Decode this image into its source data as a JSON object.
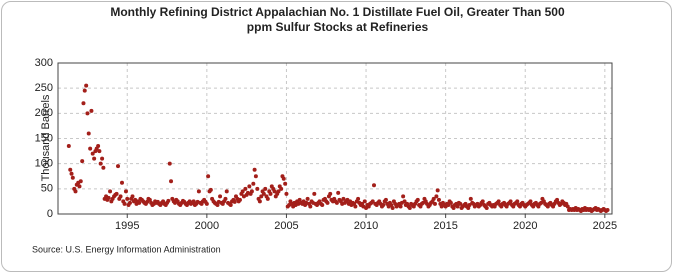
{
  "chart_data": {
    "type": "scatter",
    "title": "Monthly Refining District Appalachian No. 1 Distillate Fuel Oil, Greater Than 500 ppm Sulfur Stocks at Refineries",
    "y_label": "Thousand Barrels",
    "source": "Source: U.S. Energy Information Administration",
    "color": "#a31f1a",
    "grid": true,
    "xlim": [
      1990.65,
      2025.45
    ],
    "xticks": [
      1995,
      2000,
      2005,
      2010,
      2015,
      2020,
      2025
    ],
    "ylim": [
      0,
      300
    ],
    "yticks": [
      0,
      50,
      100,
      150,
      200,
      250,
      300
    ],
    "x": [
      1991.33,
      1991.42,
      1991.5,
      1991.58,
      1991.67,
      1991.75,
      1991.83,
      1991.92,
      1992,
      1992.08,
      1992.17,
      1992.25,
      1992.33,
      1992.42,
      1992.5,
      1992.58,
      1992.67,
      1992.75,
      1992.83,
      1992.92,
      1993,
      1993.08,
      1993.17,
      1993.25,
      1993.33,
      1993.42,
      1993.5,
      1993.58,
      1993.67,
      1993.75,
      1993.83,
      1993.92,
      1994,
      1994.08,
      1994.17,
      1994.25,
      1994.33,
      1994.42,
      1994.5,
      1994.58,
      1994.67,
      1994.75,
      1994.83,
      1994.92,
      1995,
      1995.08,
      1995.17,
      1995.25,
      1995.33,
      1995.42,
      1995.5,
      1995.58,
      1995.67,
      1995.75,
      1995.83,
      1995.92,
      1996,
      1996.08,
      1996.17,
      1996.25,
      1996.33,
      1996.42,
      1996.5,
      1996.58,
      1996.67,
      1996.75,
      1996.83,
      1996.92,
      1997,
      1997.08,
      1997.17,
      1997.25,
      1997.33,
      1997.42,
      1997.5,
      1997.58,
      1997.67,
      1997.75,
      1997.83,
      1997.92,
      1998,
      1998.08,
      1998.17,
      1998.25,
      1998.33,
      1998.42,
      1998.5,
      1998.58,
      1998.67,
      1998.75,
      1998.83,
      1998.92,
      1999,
      1999.08,
      1999.17,
      1999.25,
      1999.33,
      1999.42,
      1999.5,
      1999.58,
      1999.67,
      1999.75,
      1999.83,
      1999.92,
      2000,
      2000.08,
      2000.17,
      2000.25,
      2000.33,
      2000.42,
      2000.5,
      2000.58,
      2000.67,
      2000.75,
      2000.83,
      2000.92,
      2001,
      2001.08,
      2001.17,
      2001.25,
      2001.33,
      2001.42,
      2001.5,
      2001.58,
      2001.67,
      2001.75,
      2001.83,
      2001.92,
      2002,
      2002.08,
      2002.17,
      2002.25,
      2002.33,
      2002.42,
      2002.5,
      2002.58,
      2002.67,
      2002.75,
      2002.83,
      2002.92,
      2003,
      2003.08,
      2003.17,
      2003.25,
      2003.33,
      2003.42,
      2003.5,
      2003.58,
      2003.67,
      2003.75,
      2003.83,
      2003.92,
      2004,
      2004.08,
      2004.17,
      2004.25,
      2004.33,
      2004.42,
      2004.5,
      2004.58,
      2004.67,
      2004.75,
      2004.83,
      2004.92,
      2005,
      2005.08,
      2005.17,
      2005.25,
      2005.33,
      2005.42,
      2005.5,
      2005.58,
      2005.67,
      2005.75,
      2005.83,
      2005.92,
      2006,
      2006.08,
      2006.17,
      2006.25,
      2006.33,
      2006.42,
      2006.5,
      2006.58,
      2006.67,
      2006.75,
      2006.83,
      2006.92,
      2007,
      2007.08,
      2007.17,
      2007.25,
      2007.33,
      2007.42,
      2007.5,
      2007.58,
      2007.67,
      2007.75,
      2007.83,
      2007.92,
      2008,
      2008.08,
      2008.17,
      2008.25,
      2008.33,
      2008.42,
      2008.5,
      2008.58,
      2008.67,
      2008.75,
      2008.83,
      2008.92,
      2009,
      2009.08,
      2009.17,
      2009.25,
      2009.33,
      2009.42,
      2009.5,
      2009.58,
      2009.67,
      2009.75,
      2009.83,
      2009.92,
      2010,
      2010.08,
      2010.17,
      2010.25,
      2010.33,
      2010.42,
      2010.5,
      2010.58,
      2010.67,
      2010.75,
      2010.83,
      2010.92,
      2011,
      2011.08,
      2011.17,
      2011.25,
      2011.33,
      2011.42,
      2011.5,
      2011.58,
      2011.67,
      2011.75,
      2011.83,
      2011.92,
      2012,
      2012.08,
      2012.17,
      2012.25,
      2012.33,
      2012.42,
      2012.5,
      2012.58,
      2012.67,
      2012.75,
      2012.83,
      2012.92,
      2013,
      2013.08,
      2013.17,
      2013.25,
      2013.33,
      2013.42,
      2013.5,
      2013.58,
      2013.67,
      2013.75,
      2013.83,
      2013.92,
      2014,
      2014.08,
      2014.17,
      2014.25,
      2014.33,
      2014.42,
      2014.5,
      2014.58,
      2014.67,
      2014.75,
      2014.83,
      2014.92,
      2015,
      2015.08,
      2015.17,
      2015.25,
      2015.33,
      2015.42,
      2015.5,
      2015.58,
      2015.67,
      2015.75,
      2015.83,
      2015.92,
      2016,
      2016.08,
      2016.17,
      2016.25,
      2016.33,
      2016.42,
      2016.5,
      2016.58,
      2016.67,
      2016.75,
      2016.83,
      2016.92,
      2017,
      2017.08,
      2017.17,
      2017.25,
      2017.33,
      2017.42,
      2017.5,
      2017.58,
      2017.67,
      2017.75,
      2017.83,
      2017.92,
      2018,
      2018.08,
      2018.17,
      2018.25,
      2018.33,
      2018.42,
      2018.5,
      2018.58,
      2018.67,
      2018.75,
      2018.83,
      2018.92,
      2019,
      2019.08,
      2019.17,
      2019.25,
      2019.33,
      2019.42,
      2019.5,
      2019.58,
      2019.67,
      2019.75,
      2019.83,
      2019.92,
      2020,
      2020.08,
      2020.17,
      2020.25,
      2020.33,
      2020.42,
      2020.5,
      2020.58,
      2020.67,
      2020.75,
      2020.83,
      2020.92,
      2021,
      2021.08,
      2021.17,
      2021.25,
      2021.33,
      2021.42,
      2021.5,
      2021.58,
      2021.67,
      2021.75,
      2021.83,
      2021.92,
      2022,
      2022.08,
      2022.17,
      2022.25,
      2022.33,
      2022.42,
      2022.5,
      2022.58,
      2022.67,
      2022.75,
      2022.83,
      2022.92,
      2023,
      2023.08,
      2023.17,
      2023.25,
      2023.33,
      2023.42,
      2023.5,
      2023.58,
      2023.67,
      2023.75,
      2023.83,
      2023.92,
      2024,
      2024.08,
      2024.17,
      2024.25,
      2024.33,
      2024.42,
      2024.5,
      2024.58,
      2024.67,
      2024.75,
      2024.83,
      2024.92,
      2025,
      2025.08,
      2025.17
    ],
    "values": [
      135,
      88,
      80,
      72,
      50,
      45,
      58,
      62,
      55,
      65,
      105,
      220,
      245,
      255,
      200,
      160,
      130,
      205,
      120,
      110,
      125,
      130,
      135,
      125,
      100,
      110,
      92,
      30,
      35,
      28,
      32,
      45,
      25,
      30,
      35,
      38,
      40,
      95,
      30,
      35,
      62,
      25,
      20,
      45,
      30,
      18,
      22,
      30,
      35,
      25,
      28,
      20,
      25,
      22,
      30,
      28,
      25,
      22,
      20,
      24,
      30,
      28,
      22,
      18,
      20,
      25,
      22,
      24,
      20,
      18,
      22,
      25,
      20,
      18,
      22,
      26,
      100,
      65,
      30,
      25,
      22,
      28,
      25,
      20,
      18,
      22,
      26,
      24,
      20,
      18,
      22,
      25,
      20,
      22,
      25,
      18,
      20,
      24,
      45,
      22,
      20,
      25,
      28,
      24,
      20,
      75,
      45,
      48,
      30,
      25,
      22,
      20,
      18,
      24,
      35,
      22,
      20,
      25,
      30,
      45,
      22,
      20,
      18,
      25,
      28,
      24,
      35,
      30,
      25,
      28,
      40,
      45,
      35,
      50,
      38,
      42,
      55,
      40,
      45,
      60,
      88,
      75,
      50,
      30,
      25,
      35,
      45,
      40,
      50,
      35,
      30,
      45,
      40,
      55,
      50,
      45,
      35,
      40,
      45,
      55,
      50,
      75,
      70,
      60,
      40,
      15,
      18,
      25,
      20,
      15,
      22,
      18,
      25,
      20,
      28,
      22,
      20,
      25,
      18,
      22,
      30,
      20,
      15,
      25,
      22,
      40,
      20,
      18,
      22,
      25,
      20,
      18,
      28,
      30,
      25,
      22,
      35,
      40,
      28,
      25,
      30,
      25,
      22,
      42,
      28,
      25,
      20,
      30,
      22,
      25,
      28,
      20,
      25,
      18,
      22,
      20,
      15,
      25,
      30,
      22,
      18,
      20,
      15,
      25,
      12,
      18,
      15,
      20,
      22,
      25,
      57,
      20,
      18,
      22,
      25,
      20,
      15,
      18,
      25,
      28,
      20,
      15,
      22,
      18,
      12,
      25,
      20,
      15,
      18,
      20,
      15,
      22,
      35,
      25,
      18,
      20,
      15,
      12,
      20,
      18,
      15,
      20,
      25,
      28,
      18,
      15,
      20,
      22,
      30,
      25,
      20,
      15,
      18,
      22,
      25,
      30,
      20,
      35,
      47,
      28,
      20,
      15,
      22,
      18,
      15,
      20,
      18,
      25,
      22,
      15,
      12,
      18,
      20,
      15,
      22,
      20,
      12,
      15,
      18,
      20,
      15,
      12,
      18,
      30,
      22,
      20,
      15,
      18,
      20,
      15,
      18,
      22,
      25,
      18,
      15,
      12,
      20,
      22,
      18,
      15,
      18,
      15,
      20,
      22,
      25,
      18,
      15,
      20,
      22,
      18,
      15,
      20,
      22,
      25,
      18,
      15,
      20,
      22,
      25,
      18,
      15,
      20,
      22,
      18,
      15,
      18,
      20,
      22,
      25,
      18,
      15,
      20,
      22,
      18,
      15,
      20,
      22,
      30,
      25,
      20,
      18,
      15,
      20,
      22,
      18,
      15,
      20,
      25,
      28,
      22,
      18,
      20,
      25,
      22,
      18,
      20,
      15,
      8,
      10,
      8,
      10,
      8,
      12,
      8,
      10,
      8,
      6,
      10,
      8,
      12,
      8,
      10,
      8,
      10,
      6,
      8,
      10,
      12,
      8,
      10,
      8,
      6,
      8,
      10,
      8,
      6,
      8
    ]
  }
}
